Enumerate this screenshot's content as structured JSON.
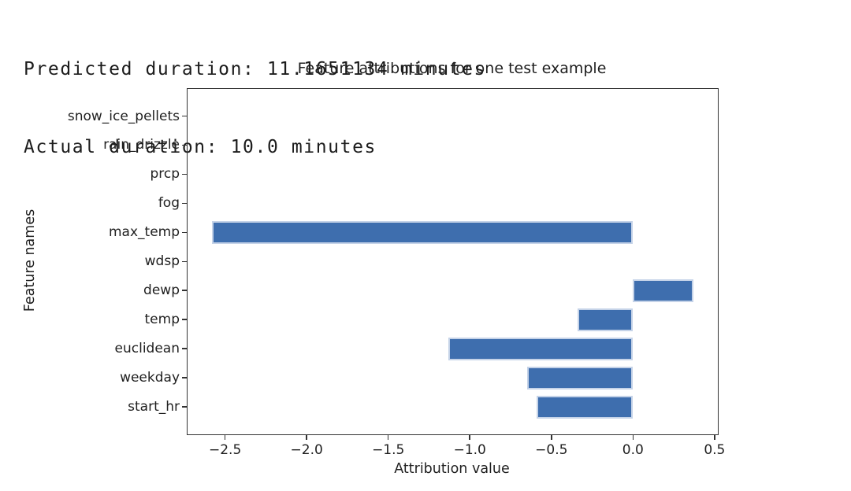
{
  "stdout": {
    "line1": "Predicted duration: 11.1651134 minutes",
    "line2": "Actual duration: 10.0 minutes"
  },
  "chart_data": {
    "type": "bar",
    "orientation": "horizontal",
    "title": "Feature attributions for one test example",
    "xlabel": "Attribution value",
    "ylabel": "Feature names",
    "categories": [
      "snow_ice_pellets",
      "rain_drizzle",
      "prcp",
      "fog",
      "max_temp",
      "wdsp",
      "dewp",
      "temp",
      "euclidean",
      "weekday",
      "start_hr"
    ],
    "values": [
      0.0,
      0.0,
      0.0,
      0.0,
      -2.58,
      0.0,
      0.37,
      -0.34,
      -1.13,
      -0.65,
      -0.59
    ],
    "xticks": [
      -2.5,
      -2.0,
      -1.5,
      -1.0,
      -0.5,
      0.0,
      0.5
    ],
    "xlim": [
      -2.73,
      0.52
    ],
    "grid": false,
    "legend": "none",
    "bar_color": "#3E6EAE",
    "bar_edge_color": "#C5D3E8",
    "axis_color": "#333333",
    "text_color": "#1F1F1F"
  }
}
